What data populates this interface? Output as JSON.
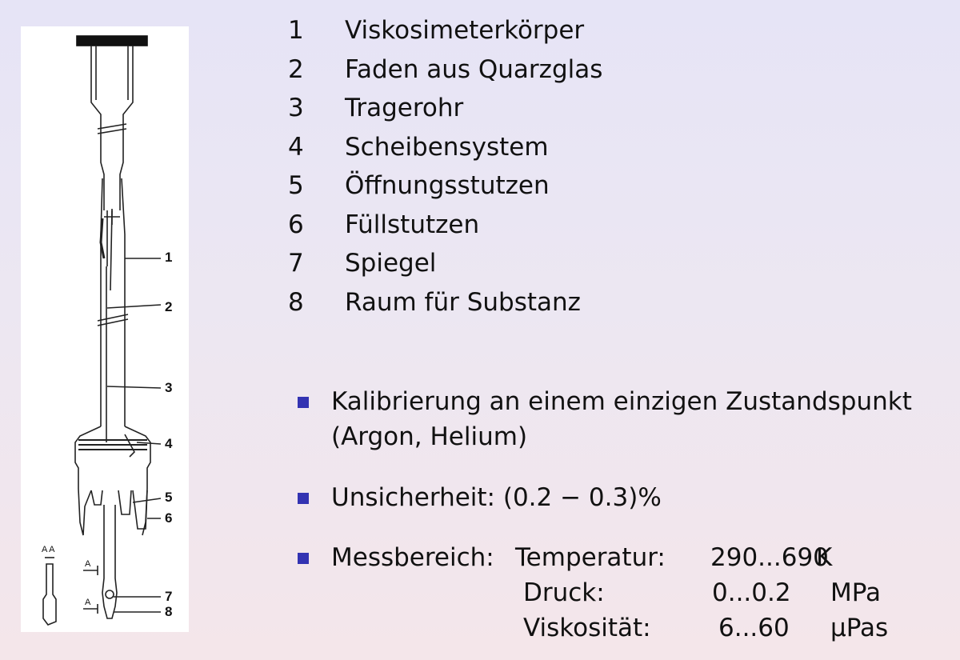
{
  "figure": {
    "callouts": [
      "1",
      "2",
      "3",
      "4",
      "5",
      "6",
      "7",
      "8"
    ],
    "section_mark": "A A",
    "section_marker": "A"
  },
  "legend": [
    {
      "num": "1",
      "label": "Viskosimeterkörper"
    },
    {
      "num": "2",
      "label": "Faden aus Quarzglas"
    },
    {
      "num": "3",
      "label": "Tragerohr"
    },
    {
      "num": "4",
      "label": "Scheibensystem"
    },
    {
      "num": "5",
      "label": "Öffnungsstutzen"
    },
    {
      "num": "6",
      "label": "Füllstutzen"
    },
    {
      "num": "7",
      "label": "Spiegel"
    },
    {
      "num": "8",
      "label": "Raum für Substanz"
    }
  ],
  "bullets": {
    "calibration_line1": "Kalibrierung an einem einzigen Zustandspunkt",
    "calibration_line2": "(Argon, Helium)",
    "uncertainty": "Unsicherheit: (0.2 − 0.3)%",
    "range_label": "Messbereich:",
    "rows": [
      {
        "name": "Temperatur:",
        "value": "290...690",
        "unit": "K"
      },
      {
        "name": "Druck:",
        "value": "0...0.2",
        "unit": "MPa"
      },
      {
        "name": "Viskosität:",
        "value": "6...60",
        "unit": "μPas"
      }
    ]
  },
  "colors": {
    "bullet": "#3333b2",
    "background_top": "#e6e4f6",
    "background_bottom": "#f4e6ea"
  }
}
